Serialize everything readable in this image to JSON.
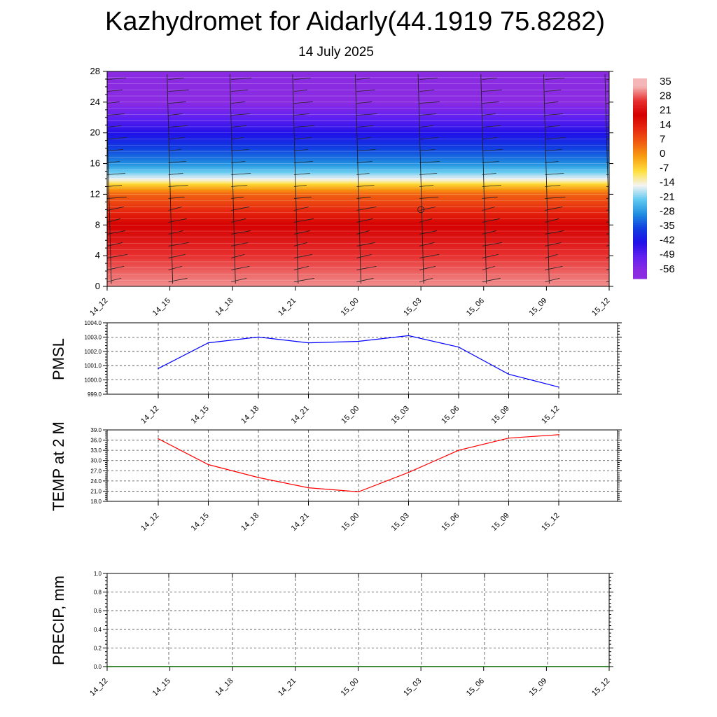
{
  "header": {
    "title": "Kazhydromet for Aidarly(44.1919 75.8282)",
    "subtitle": "14 July 2025"
  },
  "colorbar": {
    "labels": [
      "35",
      "28",
      "21",
      "14",
      "7",
      "0",
      "-7",
      "-14",
      "-21",
      "-28",
      "-35",
      "-42",
      "-49",
      "-56"
    ]
  },
  "chart_data": [
    {
      "type": "heatmap",
      "title": "",
      "x": [
        "14_12",
        "14_15",
        "14_18",
        "14_21",
        "15_00",
        "15_03",
        "15_06",
        "15_09",
        "15_12"
      ],
      "ylim": [
        0,
        28
      ],
      "y_ticks": [
        0,
        4,
        8,
        12,
        16,
        20,
        24,
        28
      ],
      "color_levels": [
        35,
        28,
        21,
        14,
        7,
        0,
        -7,
        -14,
        -21,
        -28,
        -35,
        -42,
        -49,
        -56
      ],
      "colorscale": [
        "#f4b6b6",
        "#e83030",
        "#d40000",
        "#e82a10",
        "#f06010",
        "#f8a010",
        "#ffe040",
        "#f4f4f4",
        "#60c8f0",
        "#2090e0",
        "#1040e0",
        "#2010e8",
        "#6020f0",
        "#8a2be2"
      ],
      "level_heights": [
        0,
        4,
        8,
        10,
        12,
        13,
        14,
        16,
        18,
        20,
        22,
        24,
        28
      ],
      "level_values": [
        33,
        28,
        21,
        14,
        7,
        -2,
        -14,
        -28,
        -35,
        -42,
        -49,
        -56,
        -60
      ],
      "wind_barbs": true
    },
    {
      "type": "line",
      "ylabel": "PMSL",
      "x": [
        "14_12",
        "14_15",
        "14_18",
        "14_21",
        "15_00",
        "15_03",
        "15_06",
        "15_09",
        "15_12"
      ],
      "series": [
        {
          "values": [
            1000.8,
            1002.6,
            1003.0,
            1002.6,
            1002.7,
            1003.1,
            1002.3,
            1000.4,
            999.5
          ],
          "color": "#0000ff"
        }
      ],
      "ylim": [
        999.0,
        1004.0
      ],
      "y_ticks": [
        "999.0",
        "1000.0",
        "1001.0",
        "1002.0",
        "1003.0",
        "1004.0"
      ],
      "grid": true
    },
    {
      "type": "line",
      "ylabel": "TEMP at 2 M",
      "x": [
        "14_12",
        "14_15",
        "14_18",
        "14_21",
        "15_00",
        "15_03",
        "15_06",
        "15_09",
        "15_12"
      ],
      "series": [
        {
          "values": [
            36.4,
            28.8,
            25.0,
            22.0,
            20.8,
            26.5,
            33.0,
            36.6,
            37.6
          ],
          "color": "#ff0000"
        }
      ],
      "ylim": [
        18.0,
        39.0
      ],
      "y_ticks": [
        "18.0",
        "21.0",
        "24.0",
        "27.0",
        "30.0",
        "33.0",
        "36.0",
        "39.0"
      ],
      "grid": true
    },
    {
      "type": "line",
      "ylabel": "PRECIP, mm",
      "x": [
        "14_12",
        "14_15",
        "14_18",
        "14_21",
        "15_00",
        "15_03",
        "15_06",
        "15_09",
        "15_12"
      ],
      "series": [
        {
          "values": [
            0,
            0,
            0,
            0,
            0,
            0,
            0,
            0,
            0
          ],
          "color": "#006400"
        }
      ],
      "ylim": [
        0.0,
        1.0
      ],
      "y_ticks": [
        "0.0",
        "0.2",
        "0.4",
        "0.6",
        "0.8",
        "1.0"
      ],
      "grid": true
    }
  ]
}
